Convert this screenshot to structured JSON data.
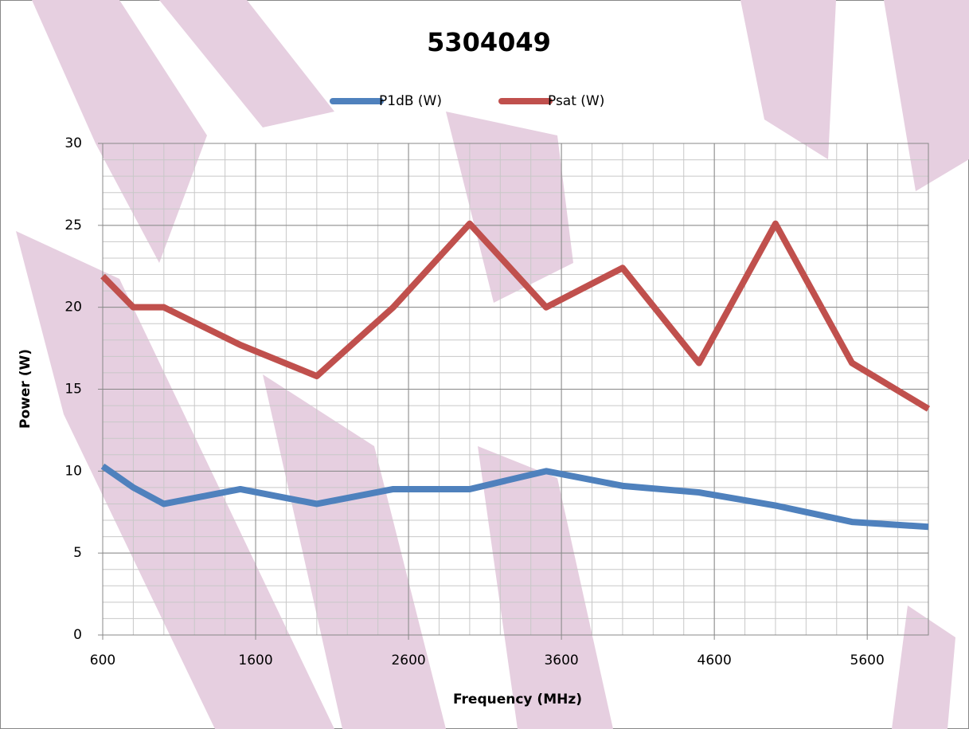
{
  "chart_data": {
    "type": "line",
    "title": "5304049",
    "x_label": "Frequency (MHz)",
    "y_label": "Power (W)",
    "x": [
      600,
      800,
      1000,
      1500,
      2000,
      2500,
      3000,
      3500,
      4000,
      4500,
      5000,
      5500,
      6000
    ],
    "series": [
      {
        "name": "P1dB (W)",
        "color": "#4f81bd",
        "values": [
          10.3,
          9,
          8,
          8.9,
          8,
          8.9,
          8.9,
          10,
          9.1,
          8.7,
          7.9,
          6.9,
          6.6
        ]
      },
      {
        "name": "Psat (W)",
        "color": "#c0504d",
        "values": [
          21.9,
          20,
          20,
          17.7,
          15.8,
          20,
          25.1,
          20,
          22.4,
          16.6,
          25.1,
          16.6,
          13.8
        ]
      }
    ],
    "xlim": [
      600,
      6000
    ],
    "xticks": [
      600,
      1600,
      2600,
      3600,
      4600,
      5600
    ],
    "ylim": [
      0,
      30
    ],
    "yticks": [
      0,
      5,
      10,
      15,
      20,
      25,
      30
    ],
    "grid": true,
    "legend": "top"
  }
}
